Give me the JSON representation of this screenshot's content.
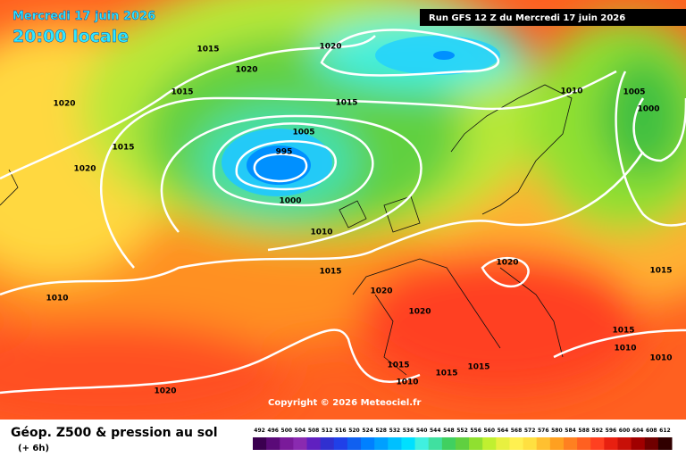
{
  "header": {
    "date": "Mercredi 17 juin 2026",
    "time": "20:00 locale",
    "run": "Run GFS 12 Z du Mercredi 17 juin 2026"
  },
  "isobar_labels": [
    "1015",
    "1020",
    "1020",
    "1015",
    "1020",
    "1015",
    "1005",
    "1015",
    "995",
    "1020",
    "1000",
    "1010",
    "1015",
    "1010",
    "1020",
    "1020",
    "1020",
    "1015",
    "1010",
    "1005",
    "1000",
    "1015",
    "1010",
    "1010",
    "1015",
    "1015",
    "1015",
    "1010",
    "1020"
  ],
  "copyright": "Copyright © 2026 Meteociel.fr",
  "legend": {
    "title": "Géop. Z500 & pression au sol",
    "subtitle": "(+ 6h)",
    "labels": [
      492,
      496,
      500,
      504,
      508,
      512,
      516,
      520,
      524,
      528,
      532,
      536,
      540,
      544,
      548,
      552,
      556,
      560,
      564,
      568,
      572,
      576,
      580,
      584,
      588,
      592,
      596,
      600,
      604,
      608,
      612
    ],
    "colors": [
      "#3b0050",
      "#5a0a78",
      "#7a1a9a",
      "#8a2ab0",
      "#6020c0",
      "#3030d0",
      "#2040e8",
      "#1060f0",
      "#0080ff",
      "#00a0ff",
      "#00c0ff",
      "#00e0ff",
      "#40f0e0",
      "#40e0a0",
      "#40d060",
      "#60d040",
      "#90e030",
      "#c0f030",
      "#e8f040",
      "#fff050",
      "#ffe040",
      "#ffc030",
      "#ffa020",
      "#ff8020",
      "#ff6020",
      "#ff4020",
      "#e82010",
      "#c81008",
      "#a00000",
      "#700000",
      "#300000"
    ]
  }
}
